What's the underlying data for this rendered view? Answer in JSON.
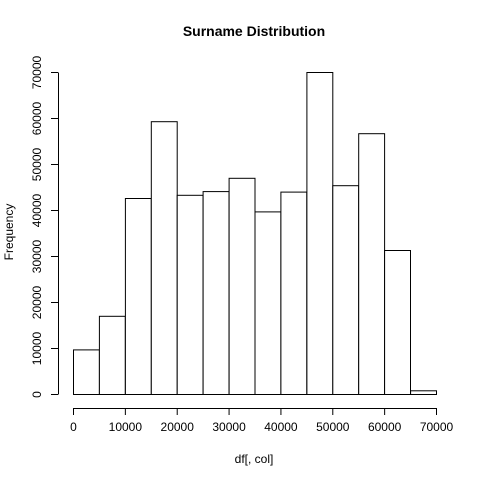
{
  "chart_data": {
    "type": "bar",
    "title": "Surname  Distribution",
    "xlabel": "df[, col]",
    "ylabel": "Frequency",
    "bin_edges": [
      0,
      5000,
      10000,
      15000,
      20000,
      25000,
      30000,
      35000,
      40000,
      45000,
      50000,
      55000,
      60000,
      65000,
      70000
    ],
    "values": [
      9700,
      17000,
      42600,
      59300,
      43300,
      44100,
      47000,
      39700,
      44000,
      70000,
      45400,
      56700,
      31300,
      800
    ],
    "xlim": [
      0,
      70000
    ],
    "ylim": [
      0,
      70000
    ],
    "x_ticks": [
      0,
      10000,
      20000,
      30000,
      40000,
      50000,
      60000,
      70000
    ],
    "y_ticks": [
      0,
      10000,
      20000,
      30000,
      40000,
      50000,
      60000,
      70000
    ],
    "x_tick_labels": [
      "0",
      "10000",
      "20000",
      "30000",
      "40000",
      "50000",
      "60000",
      "70000"
    ],
    "y_tick_labels": [
      "0",
      "10000",
      "20000",
      "30000",
      "40000",
      "50000",
      "60000",
      "70000"
    ],
    "grid": false,
    "legend": "none"
  }
}
